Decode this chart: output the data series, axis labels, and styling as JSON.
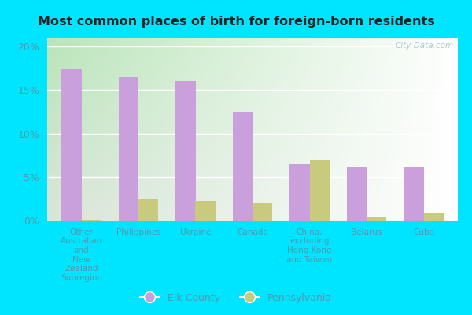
{
  "title": "Most common places of birth for foreign-born residents",
  "categories": [
    "Other\nAustralian\nand\nNew\nZealand\nSubregion",
    "Philippines",
    "Ukraine",
    "Canada",
    "China,\nexcluding\nHong Kong\nand Taiwan",
    "Belarus",
    "Cuba"
  ],
  "elk_county": [
    17.5,
    16.5,
    16.0,
    12.5,
    6.5,
    6.2,
    6.2
  ],
  "pennsylvania": [
    0.1,
    2.4,
    2.3,
    2.0,
    7.0,
    0.4,
    0.8
  ],
  "elk_color": "#c9a0dc",
  "pa_color": "#c8ca7e",
  "ylim": [
    0,
    21
  ],
  "yticks": [
    0,
    5,
    10,
    15,
    20
  ],
  "ytick_labels": [
    "0%",
    "5%",
    "10%",
    "15%",
    "20%"
  ],
  "legend_elk": "Elk County",
  "legend_pa": "Pennsylvania",
  "outer_bg": "#00e5ff",
  "watermark": "City-Data.com",
  "text_color": "#5599aa",
  "title_color": "#222222"
}
